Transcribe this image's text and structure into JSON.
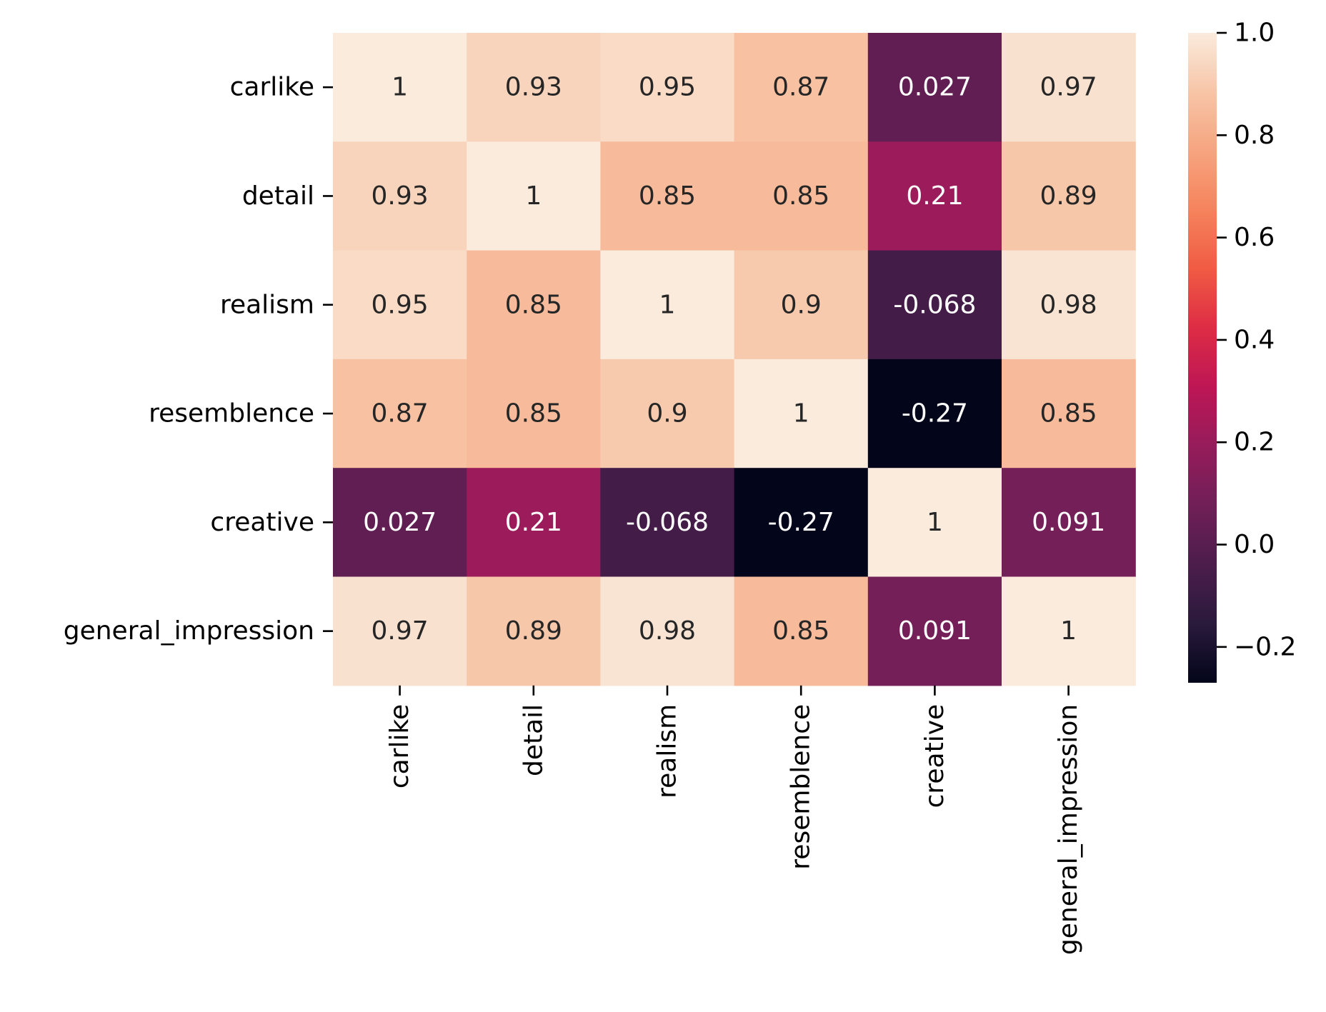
{
  "chart_data": {
    "type": "heatmap",
    "title": "",
    "xlabel": "",
    "ylabel": "",
    "rows": [
      "carlike",
      "detail",
      "realism",
      "resemblence",
      "creative",
      "general_impression"
    ],
    "columns": [
      "carlike",
      "detail",
      "realism",
      "resemblence",
      "creative",
      "general_impression"
    ],
    "values": [
      [
        1,
        0.93,
        0.95,
        0.87,
        0.027,
        0.97
      ],
      [
        0.93,
        1,
        0.85,
        0.85,
        0.21,
        0.89
      ],
      [
        0.95,
        0.85,
        1,
        0.9,
        -0.068,
        0.98
      ],
      [
        0.87,
        0.85,
        0.9,
        1,
        -0.27,
        0.85
      ],
      [
        0.027,
        0.21,
        -0.068,
        -0.27,
        1,
        0.091
      ],
      [
        0.97,
        0.89,
        0.98,
        0.85,
        0.091,
        1
      ]
    ],
    "annotations": [
      [
        "1",
        "0.93",
        "0.95",
        "0.87",
        "0.027",
        "0.97"
      ],
      [
        "0.93",
        "1",
        "0.85",
        "0.85",
        "0.21",
        "0.89"
      ],
      [
        "0.95",
        "0.85",
        "1",
        "0.9",
        "-0.068",
        "0.98"
      ],
      [
        "0.87",
        "0.85",
        "0.9",
        "1",
        "-0.27",
        "0.85"
      ],
      [
        "0.027",
        "0.21",
        "-0.068",
        "-0.27",
        "1",
        "0.091"
      ],
      [
        "0.97",
        "0.89",
        "0.98",
        "0.85",
        "0.091",
        "1"
      ]
    ],
    "colorbar": {
      "vmin": -0.27,
      "vmax": 1.0,
      "ticks": [
        1.0,
        0.8,
        0.6,
        0.4,
        0.2,
        0.0,
        -0.2
      ],
      "tick_labels": [
        "1.0",
        "0.8",
        "0.6",
        "0.4",
        "0.2",
        "0.0",
        "−0.2"
      ]
    },
    "colormap": {
      "name": "rocket",
      "stops": [
        "#03051a",
        "#2a1a3c",
        "#4c1d4b",
        "#701f57",
        "#961c5b",
        "#bd1655",
        "#dd2c45",
        "#f05b43",
        "#f5835c",
        "#f6a47f",
        "#f7c5a7",
        "#faebdd"
      ]
    },
    "grid": false,
    "legend": "none"
  }
}
